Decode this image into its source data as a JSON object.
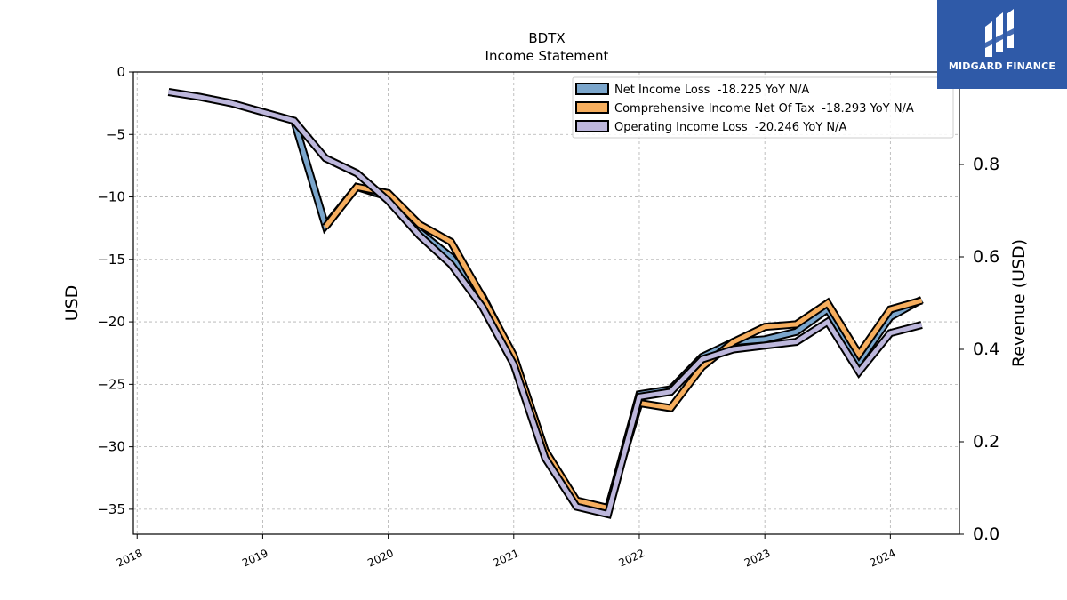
{
  "chart_data": {
    "type": "line",
    "title": "BDTX",
    "subtitle": "Income Statement",
    "ylabel": "USD",
    "ylabel_right": "Revenue (USD)",
    "ylim": [
      -37,
      0
    ],
    "ylim_right": [
      0,
      1.0
    ],
    "xlim": [
      2017.97,
      2024.55
    ],
    "yticks": [
      0,
      -5,
      -10,
      -15,
      -20,
      -25,
      -30,
      -35
    ],
    "yticks_right": [
      0.0,
      0.2,
      0.4,
      0.6,
      0.8
    ],
    "xticks": [
      "2018",
      "2019",
      "2020",
      "2021",
      "2022",
      "2023",
      "2024"
    ],
    "grid": true,
    "legend_position": "top-right",
    "x": [
      2018.25,
      2018.5,
      2018.75,
      2019.0,
      2019.25,
      2019.5,
      2019.75,
      2020.0,
      2020.25,
      2020.5,
      2020.75,
      2021.0,
      2021.25,
      2021.5,
      2021.75,
      2022.0,
      2022.25,
      2022.5,
      2022.75,
      2023.0,
      2023.25,
      2023.5,
      2023.75,
      2024.0,
      2024.25
    ],
    "series": [
      {
        "name": "Net Income Loss  -18.225 YoY N/A",
        "color": "#7ba6cc",
        "values": [
          null,
          null,
          null,
          null,
          -3.9,
          -12.3,
          -9.2,
          -10.0,
          -12.8,
          -14.8,
          -17.9,
          -22.8,
          -30.3,
          -34.4,
          -35.0,
          -25.8,
          -25.4,
          -22.8,
          -21.6,
          -21.4,
          -20.8,
          -19.0,
          -23.2,
          -19.6,
          -18.225
        ]
      },
      {
        "name": "Comprehensive Income Net Of Tax  -18.293 YoY N/A",
        "color": "#f6ae5e",
        "values": [
          null,
          null,
          null,
          null,
          null,
          -12.4,
          -9.2,
          -9.7,
          -12.2,
          -13.6,
          -18.0,
          -22.7,
          -30.3,
          -34.3,
          -34.9,
          -26.5,
          -26.9,
          -23.6,
          -21.6,
          -20.4,
          -20.2,
          -18.5,
          -22.6,
          -19.0,
          -18.293
        ]
      },
      {
        "name": "Operating Income Loss  -20.246 YoY N/A",
        "color": "#bdb7dc",
        "values": [
          -1.6,
          -2.0,
          -2.5,
          -3.2,
          -3.9,
          -6.9,
          -8.1,
          -10.3,
          -13.1,
          -15.4,
          -18.8,
          -23.4,
          -30.9,
          -34.8,
          -35.4,
          -26.0,
          -25.6,
          -23.0,
          -22.2,
          -21.9,
          -21.6,
          -20.0,
          -24.0,
          -20.9,
          -20.246
        ]
      }
    ]
  },
  "logo": {
    "text": "MIDGARD FINANCE",
    "background": "#2f5aa8"
  }
}
